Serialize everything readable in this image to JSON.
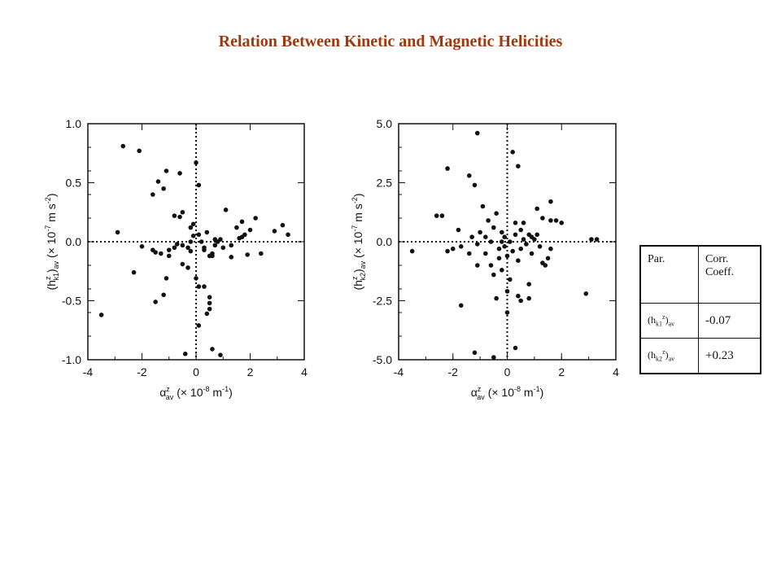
{
  "title": "Relation Between Kinetic and Magnetic Helicities",
  "table": {
    "header": [
      "Par.",
      "Corr. Coeff."
    ],
    "rows": [
      {
        "par_base": "(h",
        "par_sub": "k1",
        "par_sup": "z",
        "par_close": ")",
        "par_avsub": "av",
        "value": "-0.07"
      },
      {
        "par_base": "(h",
        "par_sub": "k2",
        "par_sup": "z",
        "par_close": ")",
        "par_avsub": "av",
        "value": "+0.23"
      }
    ]
  },
  "chart_data": [
    {
      "type": "scatter",
      "xlabel": "α^z_av (× 10^-8 m^-1)",
      "ylabel": "(h^z_k1)_av (× 10^-7 m s^-2)",
      "xlim": [
        -4,
        4
      ],
      "ylim": [
        -1.0,
        1.0
      ],
      "xticks": [
        "-4",
        "-2",
        "0",
        "2",
        "4"
      ],
      "yticks": [
        "-1.0",
        "-0.5",
        "0.0",
        "0.5",
        "1.0"
      ],
      "zero_lines": true,
      "points": [
        [
          -2.7,
          0.81
        ],
        [
          -2.1,
          0.77
        ],
        [
          -3.5,
          -0.62
        ],
        [
          -2.9,
          0.08
        ],
        [
          -2.3,
          -0.26
        ],
        [
          -2.0,
          -0.04
        ],
        [
          -1.6,
          0.4
        ],
        [
          -1.4,
          0.51
        ],
        [
          -1.2,
          0.45
        ],
        [
          -1.1,
          0.6
        ],
        [
          -0.6,
          0.58
        ],
        [
          0.0,
          0.67
        ],
        [
          0.1,
          0.48
        ],
        [
          -1.5,
          -0.51
        ],
        [
          -1.2,
          -0.45
        ],
        [
          -1.1,
          -0.31
        ],
        [
          -1.5,
          -0.09
        ],
        [
          -1.0,
          -0.12
        ],
        [
          -0.5,
          -0.19
        ],
        [
          -0.3,
          -0.22
        ],
        [
          0.0,
          -0.31
        ],
        [
          0.1,
          -0.38
        ],
        [
          0.3,
          -0.38
        ],
        [
          0.5,
          -0.52
        ],
        [
          0.5,
          -0.57
        ],
        [
          0.4,
          -0.61
        ],
        [
          0.1,
          -0.71
        ],
        [
          0.6,
          -0.91
        ],
        [
          0.9,
          -0.96
        ],
        [
          -0.4,
          -0.95
        ],
        [
          0.5,
          -0.47
        ],
        [
          0.3,
          -0.07
        ],
        [
          0.5,
          -0.12
        ],
        [
          0.6,
          -0.1
        ],
        [
          0.7,
          -0.03
        ],
        [
          0.9,
          0.02
        ],
        [
          0.8,
          0.0
        ],
        [
          1.1,
          0.27
        ],
        [
          1.0,
          -0.05
        ],
        [
          1.3,
          -0.03
        ],
        [
          1.5,
          0.12
        ],
        [
          1.6,
          0.03
        ],
        [
          1.7,
          0.04
        ],
        [
          1.7,
          0.17
        ],
        [
          1.9,
          -0.11
        ],
        [
          1.8,
          0.06
        ],
        [
          2.2,
          0.2
        ],
        [
          2.0,
          0.1
        ],
        [
          2.4,
          -0.1
        ],
        [
          2.9,
          0.09
        ],
        [
          3.2,
          0.14
        ],
        [
          3.4,
          0.06
        ],
        [
          -0.5,
          0.25
        ],
        [
          -0.6,
          0.21
        ],
        [
          -0.2,
          0.12
        ],
        [
          -0.1,
          0.15
        ],
        [
          -0.1,
          0.05
        ],
        [
          -0.2,
          0.0
        ],
        [
          -0.3,
          -0.05
        ],
        [
          -0.5,
          -0.03
        ],
        [
          -0.7,
          -0.02
        ],
        [
          -0.8,
          -0.05
        ],
        [
          -1.0,
          -0.07
        ],
        [
          -1.3,
          -0.1
        ],
        [
          -1.6,
          -0.07
        ],
        [
          -0.8,
          0.22
        ],
        [
          0.4,
          0.08
        ],
        [
          0.2,
          0.0
        ],
        [
          1.3,
          -0.13
        ],
        [
          0.6,
          -0.12
        ],
        [
          0.7,
          0.02
        ],
        [
          0.3,
          -0.05
        ],
        [
          0.1,
          0.06
        ],
        [
          -0.2,
          -0.08
        ]
      ]
    },
    {
      "type": "scatter",
      "xlabel": "α^z_av (× 10^-8 m^-1)",
      "ylabel": "(h^z_k2)_av (× 10^-7 m s^-2)",
      "xlim": [
        -4,
        4
      ],
      "ylim": [
        -5.0,
        5.0
      ],
      "xticks": [
        "-4",
        "-2",
        "0",
        "2",
        "4"
      ],
      "yticks": [
        "-5.0",
        "-2.5",
        "0.0",
        "2.5",
        "5.0"
      ],
      "zero_lines": true,
      "points": [
        [
          -1.1,
          4.6
        ],
        [
          0.2,
          3.8
        ],
        [
          0.4,
          3.2
        ],
        [
          -2.2,
          3.1
        ],
        [
          -1.4,
          2.8
        ],
        [
          -1.2,
          2.4
        ],
        [
          -2.6,
          1.1
        ],
        [
          -2.4,
          1.1
        ],
        [
          -0.9,
          1.5
        ],
        [
          -0.7,
          0.9
        ],
        [
          -0.4,
          1.2
        ],
        [
          -0.2,
          0.4
        ],
        [
          -0.5,
          0.6
        ],
        [
          -1.1,
          -0.1
        ],
        [
          -1.7,
          -0.2
        ],
        [
          -1.4,
          -0.5
        ],
        [
          -2.2,
          -0.4
        ],
        [
          -3.5,
          -0.4
        ],
        [
          -1.7,
          -2.7
        ],
        [
          -1.1,
          -1.0
        ],
        [
          -0.8,
          -0.5
        ],
        [
          -0.6,
          -1.0
        ],
        [
          -0.5,
          -1.4
        ],
        [
          -0.3,
          -0.7
        ],
        [
          -0.4,
          -2.4
        ],
        [
          -1.2,
          -4.7
        ],
        [
          -0.5,
          -4.9
        ],
        [
          0.0,
          -2.1
        ],
        [
          0.1,
          -1.6
        ],
        [
          0.0,
          -3.0
        ],
        [
          0.4,
          -2.3
        ],
        [
          0.3,
          -4.5
        ],
        [
          0.8,
          -1.8
        ],
        [
          0.8,
          -2.4
        ],
        [
          0.5,
          -2.5
        ],
        [
          1.6,
          -0.3
        ],
        [
          1.5,
          -0.7
        ],
        [
          1.3,
          -0.9
        ],
        [
          1.4,
          -1.0
        ],
        [
          1.0,
          0.1
        ],
        [
          1.1,
          0.3
        ],
        [
          0.9,
          0.2
        ],
        [
          1.3,
          1.0
        ],
        [
          1.1,
          1.4
        ],
        [
          1.6,
          1.7
        ],
        [
          1.6,
          0.9
        ],
        [
          1.8,
          0.9
        ],
        [
          2.0,
          0.8
        ],
        [
          3.1,
          0.1
        ],
        [
          3.3,
          0.1
        ],
        [
          2.9,
          -2.2
        ],
        [
          0.5,
          0.5
        ],
        [
          0.3,
          0.3
        ],
        [
          0.6,
          0.1
        ],
        [
          0.7,
          -0.1
        ],
        [
          0.5,
          -0.3
        ],
        [
          0.2,
          -0.4
        ],
        [
          0.0,
          -0.6
        ],
        [
          -0.1,
          -0.2
        ],
        [
          -0.2,
          0.0
        ],
        [
          -0.3,
          -0.3
        ],
        [
          -0.1,
          0.2
        ],
        [
          0.1,
          0.0
        ],
        [
          -0.6,
          0.0
        ],
        [
          -0.8,
          0.2
        ],
        [
          -1.0,
          0.4
        ],
        [
          -1.3,
          0.2
        ],
        [
          -1.8,
          0.5
        ],
        [
          -2.0,
          -0.3
        ],
        [
          0.4,
          -0.8
        ],
        [
          0.9,
          -0.5
        ],
        [
          0.6,
          0.8
        ],
        [
          0.8,
          0.3
        ],
        [
          1.2,
          -0.2
        ],
        [
          -0.2,
          -1.2
        ],
        [
          0.3,
          0.8
        ]
      ]
    }
  ]
}
